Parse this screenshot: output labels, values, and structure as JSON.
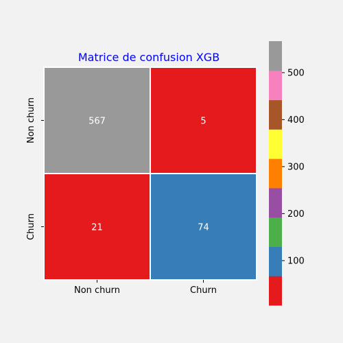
{
  "chart_data": {
    "type": "heatmap",
    "title": "Matrice de confusion XGB",
    "title_color": "#0000ff",
    "x_categories": [
      "Non churn",
      "Churn"
    ],
    "y_categories": [
      "Non churn",
      "Churn"
    ],
    "values": [
      [
        567,
        5
      ],
      [
        21,
        74
      ]
    ],
    "colormap": "Set1",
    "colorbar": {
      "range": [
        5,
        567
      ],
      "ticks": [
        100,
        200,
        300,
        400,
        500
      ],
      "colors": [
        "#e41a1c",
        "#377eb8",
        "#4daf4a",
        "#984ea3",
        "#ff7f00",
        "#ffff33",
        "#a65628",
        "#f781bf",
        "#999999"
      ]
    },
    "annotation_color": "#ffffff"
  }
}
